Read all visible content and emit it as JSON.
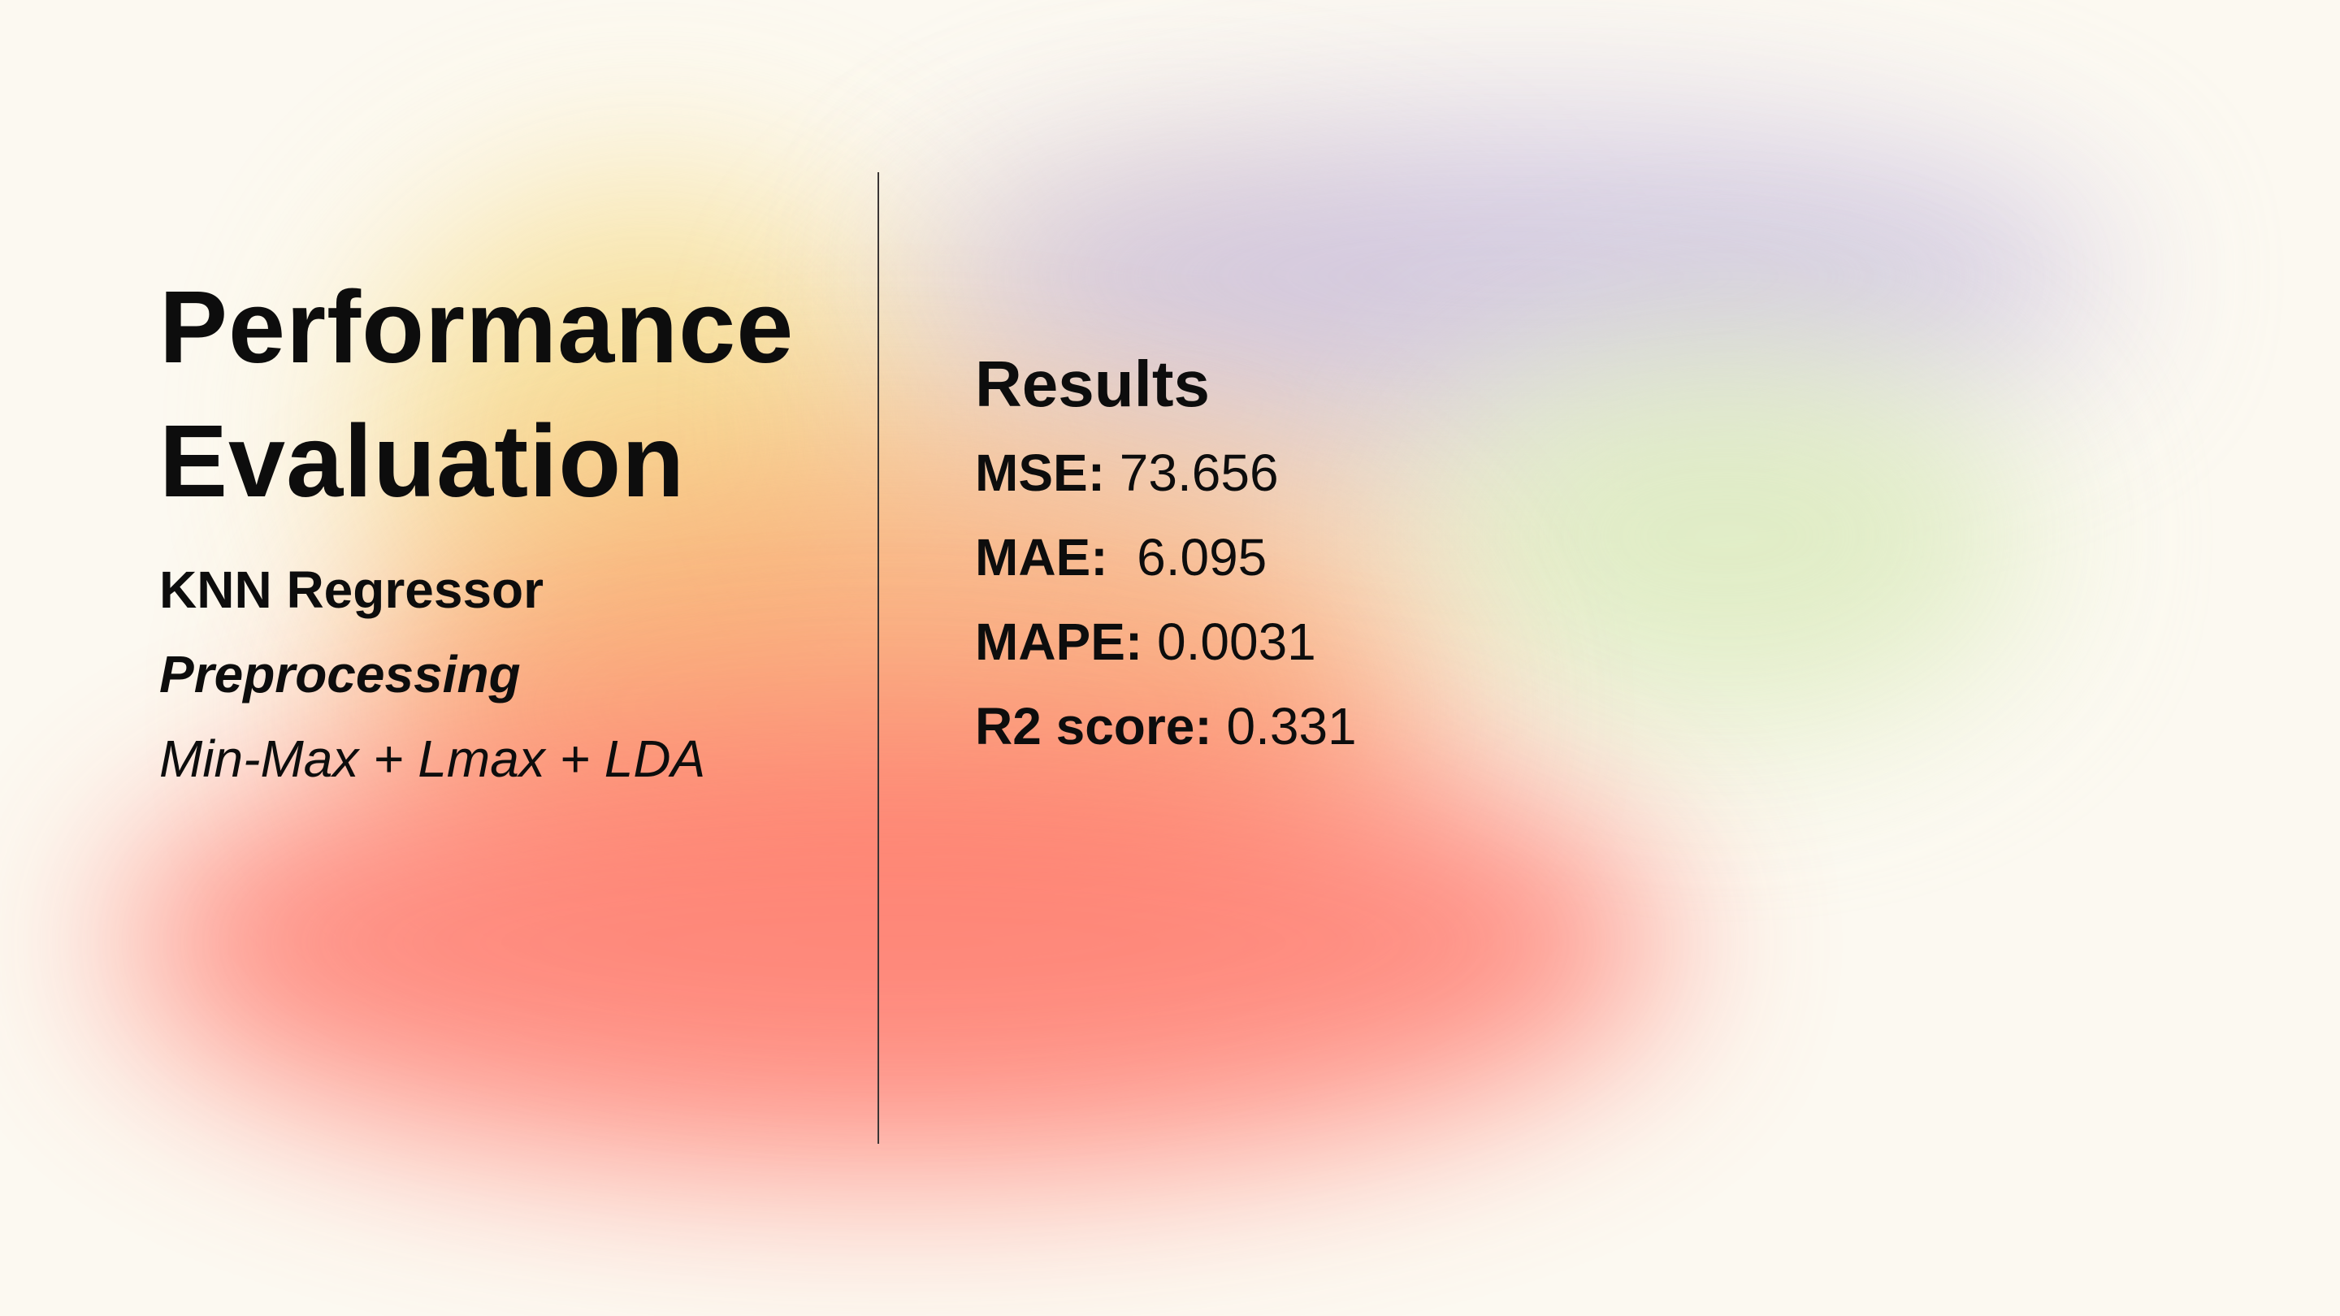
{
  "title_lines": [
    "Performance",
    "Evaluation"
  ],
  "model": "KNN Regressor",
  "preprocessing": {
    "label": "Preprocessing",
    "value": "Min-Max + Lmax + LDA"
  },
  "results": {
    "heading": "Results",
    "metrics": [
      {
        "label": "MSE:",
        "value": "73.656"
      },
      {
        "label": "MAE:",
        "value": " 6.095"
      },
      {
        "label": "MAPE:",
        "value": "0.0031"
      },
      {
        "label": "R2 score:",
        "value": "0.331"
      }
    ]
  },
  "colors": {
    "background": "#fcf9f1",
    "text": "#0d0d0d",
    "gradient_red": "#ff7b6f",
    "gradient_orange": "#f9a56e",
    "gradient_yellow": "#f6dc8e",
    "gradient_violet": "#cdc3e0",
    "gradient_green": "#dcebbf"
  }
}
